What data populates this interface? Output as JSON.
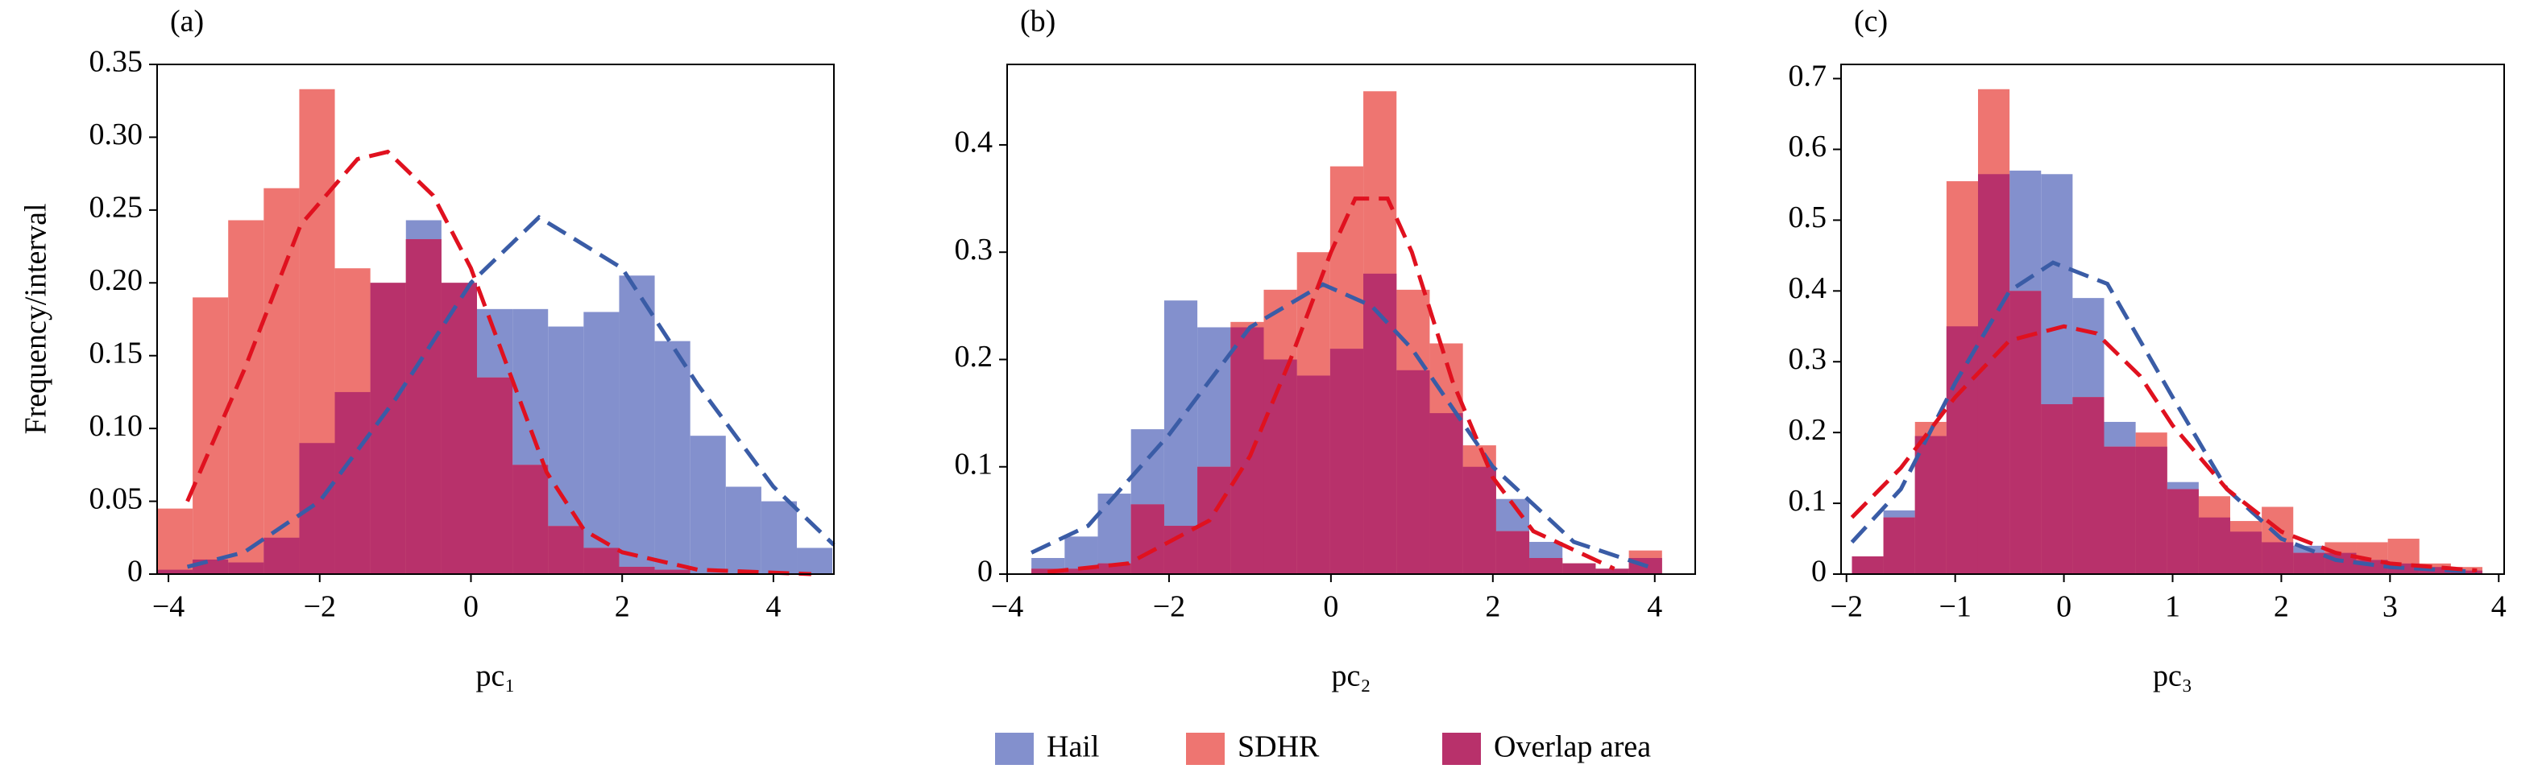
{
  "ylabel": "Frequency/interval",
  "legend": [
    {
      "name": "Hail",
      "color": "#8390cd"
    },
    {
      "name": "SDHR",
      "color": "#ee7571"
    },
    {
      "name": "Overlap area",
      "color": "#b8316b"
    }
  ],
  "chart_data": [
    {
      "type": "histogram",
      "title": "(a)",
      "xlabel": "pc₁",
      "bins": [
        -4.15,
        -3.68,
        -3.21,
        -2.74,
        -2.27,
        -1.8,
        -1.33,
        -0.86,
        -0.39,
        0.08,
        0.55,
        1.02,
        1.49,
        1.96,
        2.43,
        2.9,
        3.37,
        3.84,
        4.31,
        4.78
      ],
      "series": [
        {
          "values": [
            0.003,
            0.01,
            0.008,
            0.025,
            0.09,
            0.125,
            0.2,
            0.243,
            0.2,
            0.182,
            0.182,
            0.17,
            0.18,
            0.205,
            0.16,
            0.095,
            0.06,
            0.05,
            0.018
          ]
        },
        {
          "values": [
            0.045,
            0.19,
            0.243,
            0.265,
            0.333,
            0.21,
            0.2,
            0.23,
            0.2,
            0.135,
            0.075,
            0.033,
            0.018,
            0.005,
            0.003,
            0,
            0,
            0,
            0
          ]
        }
      ],
      "curves": [
        {
          "color": "#3a5ca6",
          "x": [
            -3.75,
            -3,
            -2,
            -1,
            0,
            0.9,
            2,
            3,
            4,
            4.8
          ],
          "values": [
            0.005,
            0.015,
            0.05,
            0.12,
            0.2,
            0.245,
            0.21,
            0.13,
            0.06,
            0.02
          ]
        },
        {
          "color": "#e0111f",
          "x": [
            -3.75,
            -3,
            -2.25,
            -1.5,
            -1.1,
            -0.5,
            0,
            0.5,
            1,
            1.5,
            2,
            3,
            4.5
          ],
          "values": [
            0.05,
            0.14,
            0.24,
            0.285,
            0.29,
            0.26,
            0.21,
            0.14,
            0.07,
            0.03,
            0.015,
            0.003,
            0
          ]
        }
      ],
      "xlim": [
        -4.15,
        4.8
      ],
      "ylim": [
        0,
        0.35
      ],
      "xticks": [
        {
          "value": -4,
          "label": "−4"
        },
        {
          "value": -2,
          "label": "−2"
        },
        0,
        2,
        4
      ],
      "yticks": [
        0,
        0.05,
        {
          "value": 0.1,
          "label": "0.10"
        },
        0.15,
        {
          "value": 0.2,
          "label": "0.20"
        },
        0.25,
        {
          "value": 0.3,
          "label": "0.30"
        },
        0.35
      ]
    },
    {
      "type": "histogram",
      "title": "(b)",
      "xlabel": "pc₂",
      "bins": [
        -3.7,
        -3.29,
        -2.88,
        -2.47,
        -2.06,
        -1.65,
        -1.24,
        -0.83,
        -0.42,
        -0.01,
        0.4,
        0.81,
        1.22,
        1.63,
        2.04,
        2.45,
        2.86,
        3.27,
        3.68,
        4.09
      ],
      "series": [
        {
          "values": [
            0.015,
            0.035,
            0.075,
            0.135,
            0.255,
            0.23,
            0.23,
            0.2,
            0.185,
            0.21,
            0.28,
            0.19,
            0.15,
            0.1,
            0.07,
            0.03,
            0.01,
            0.005,
            0.015
          ]
        },
        {
          "values": [
            0.005,
            0.005,
            0.01,
            0.065,
            0.045,
            0.1,
            0.235,
            0.265,
            0.3,
            0.38,
            0.45,
            0.265,
            0.215,
            0.12,
            0.04,
            0.015,
            0.01,
            0.005,
            0.022
          ]
        }
      ],
      "curves": [
        {
          "color": "#3a5ca6",
          "x": [
            -3.7,
            -3,
            -2,
            -1,
            -0.1,
            0.5,
            1,
            2,
            3,
            4
          ],
          "values": [
            0.02,
            0.045,
            0.13,
            0.23,
            0.27,
            0.25,
            0.21,
            0.1,
            0.03,
            0.005
          ]
        },
        {
          "color": "#e0111f",
          "x": [
            -3.5,
            -2.5,
            -1.5,
            -1,
            -0.5,
            0,
            0.3,
            0.7,
            1,
            1.5,
            2,
            2.5,
            3.5
          ],
          "values": [
            0.002,
            0.01,
            0.05,
            0.11,
            0.2,
            0.3,
            0.35,
            0.35,
            0.3,
            0.18,
            0.09,
            0.04,
            0.005
          ]
        }
      ],
      "xlim": [
        -4,
        4.5
      ],
      "ylim": [
        0,
        0.475
      ],
      "xticks": [
        {
          "value": -4,
          "label": "−4"
        },
        {
          "value": -2,
          "label": "−2"
        },
        0,
        2,
        4
      ],
      "yticks": [
        0,
        0.1,
        0.2,
        0.3,
        0.4
      ]
    },
    {
      "type": "histogram",
      "title": "(c)",
      "xlabel": "pc₃",
      "bins": [
        -1.95,
        -1.66,
        -1.37,
        -1.08,
        -0.79,
        -0.5,
        -0.21,
        0.08,
        0.37,
        0.66,
        0.95,
        1.24,
        1.53,
        1.82,
        2.11,
        2.4,
        2.69,
        2.98,
        3.27,
        3.56,
        3.85
      ],
      "series": [
        {
          "values": [
            0.025,
            0.09,
            0.195,
            0.35,
            0.565,
            0.57,
            0.565,
            0.39,
            0.215,
            0.18,
            0.13,
            0.08,
            0.06,
            0.045,
            0.04,
            0.03,
            0.02,
            0.015,
            0.01,
            0.005
          ]
        },
        {
          "values": [
            0.025,
            0.08,
            0.215,
            0.555,
            0.685,
            0.4,
            0.24,
            0.25,
            0.18,
            0.2,
            0.12,
            0.11,
            0.075,
            0.095,
            0.03,
            0.045,
            0.045,
            0.05,
            0.015,
            0.01
          ]
        }
      ],
      "curves": [
        {
          "color": "#3a5ca6",
          "x": [
            -1.95,
            -1.5,
            -1,
            -0.5,
            -0.1,
            0.4,
            1,
            1.5,
            2,
            2.5,
            3,
            3.8
          ],
          "values": [
            0.045,
            0.12,
            0.27,
            0.4,
            0.44,
            0.41,
            0.25,
            0.12,
            0.05,
            0.02,
            0.01,
            0.003
          ]
        },
        {
          "color": "#e0111f",
          "x": [
            -1.95,
            -1.5,
            -1,
            -0.5,
            0,
            0.3,
            0.7,
            1,
            1.5,
            2,
            2.5,
            3,
            3.8
          ],
          "values": [
            0.08,
            0.15,
            0.25,
            0.33,
            0.35,
            0.34,
            0.28,
            0.21,
            0.12,
            0.06,
            0.03,
            0.015,
            0.005
          ]
        }
      ],
      "xlim": [
        -2.05,
        4.05
      ],
      "ylim": [
        0,
        0.72
      ],
      "xticks": [
        {
          "value": -2,
          "label": "−2"
        },
        {
          "value": -1,
          "label": "−1"
        },
        0,
        1,
        2,
        3,
        4
      ],
      "yticks": [
        0,
        0.1,
        0.2,
        0.3,
        0.4,
        0.5,
        0.6,
        0.7
      ]
    }
  ]
}
